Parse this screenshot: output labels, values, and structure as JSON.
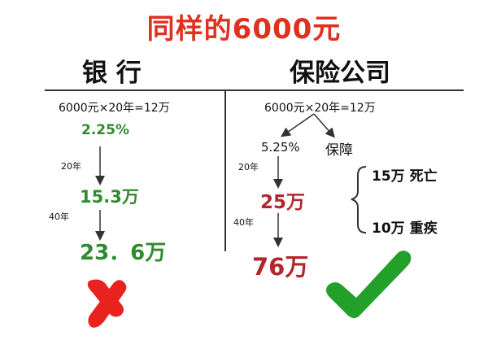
{
  "title": "同样的6000元",
  "bank": {
    "heading": "银 行",
    "formula": "6000元×20年=12万",
    "rate": "2.25%",
    "year1": "20年",
    "value1": "15.3万",
    "year2": "40年",
    "value2": "23．6万",
    "mark_icon": "red-cross-icon"
  },
  "insurance": {
    "heading": "保险公司",
    "formula": "6000元×20年=12万",
    "rate": "5.25%",
    "protection": "保障",
    "year1": "20年",
    "value1": "25万",
    "year2": "40年",
    "value2": "76万",
    "benefit1": "15万  死亡",
    "benefit2": "10万  重疾",
    "mark_icon": "green-check-icon"
  },
  "colors": {
    "title": "#e0301e",
    "green": "#2e8b2e",
    "red": "#b3262e",
    "cross": "#e8231f",
    "check": "#23a02a"
  }
}
